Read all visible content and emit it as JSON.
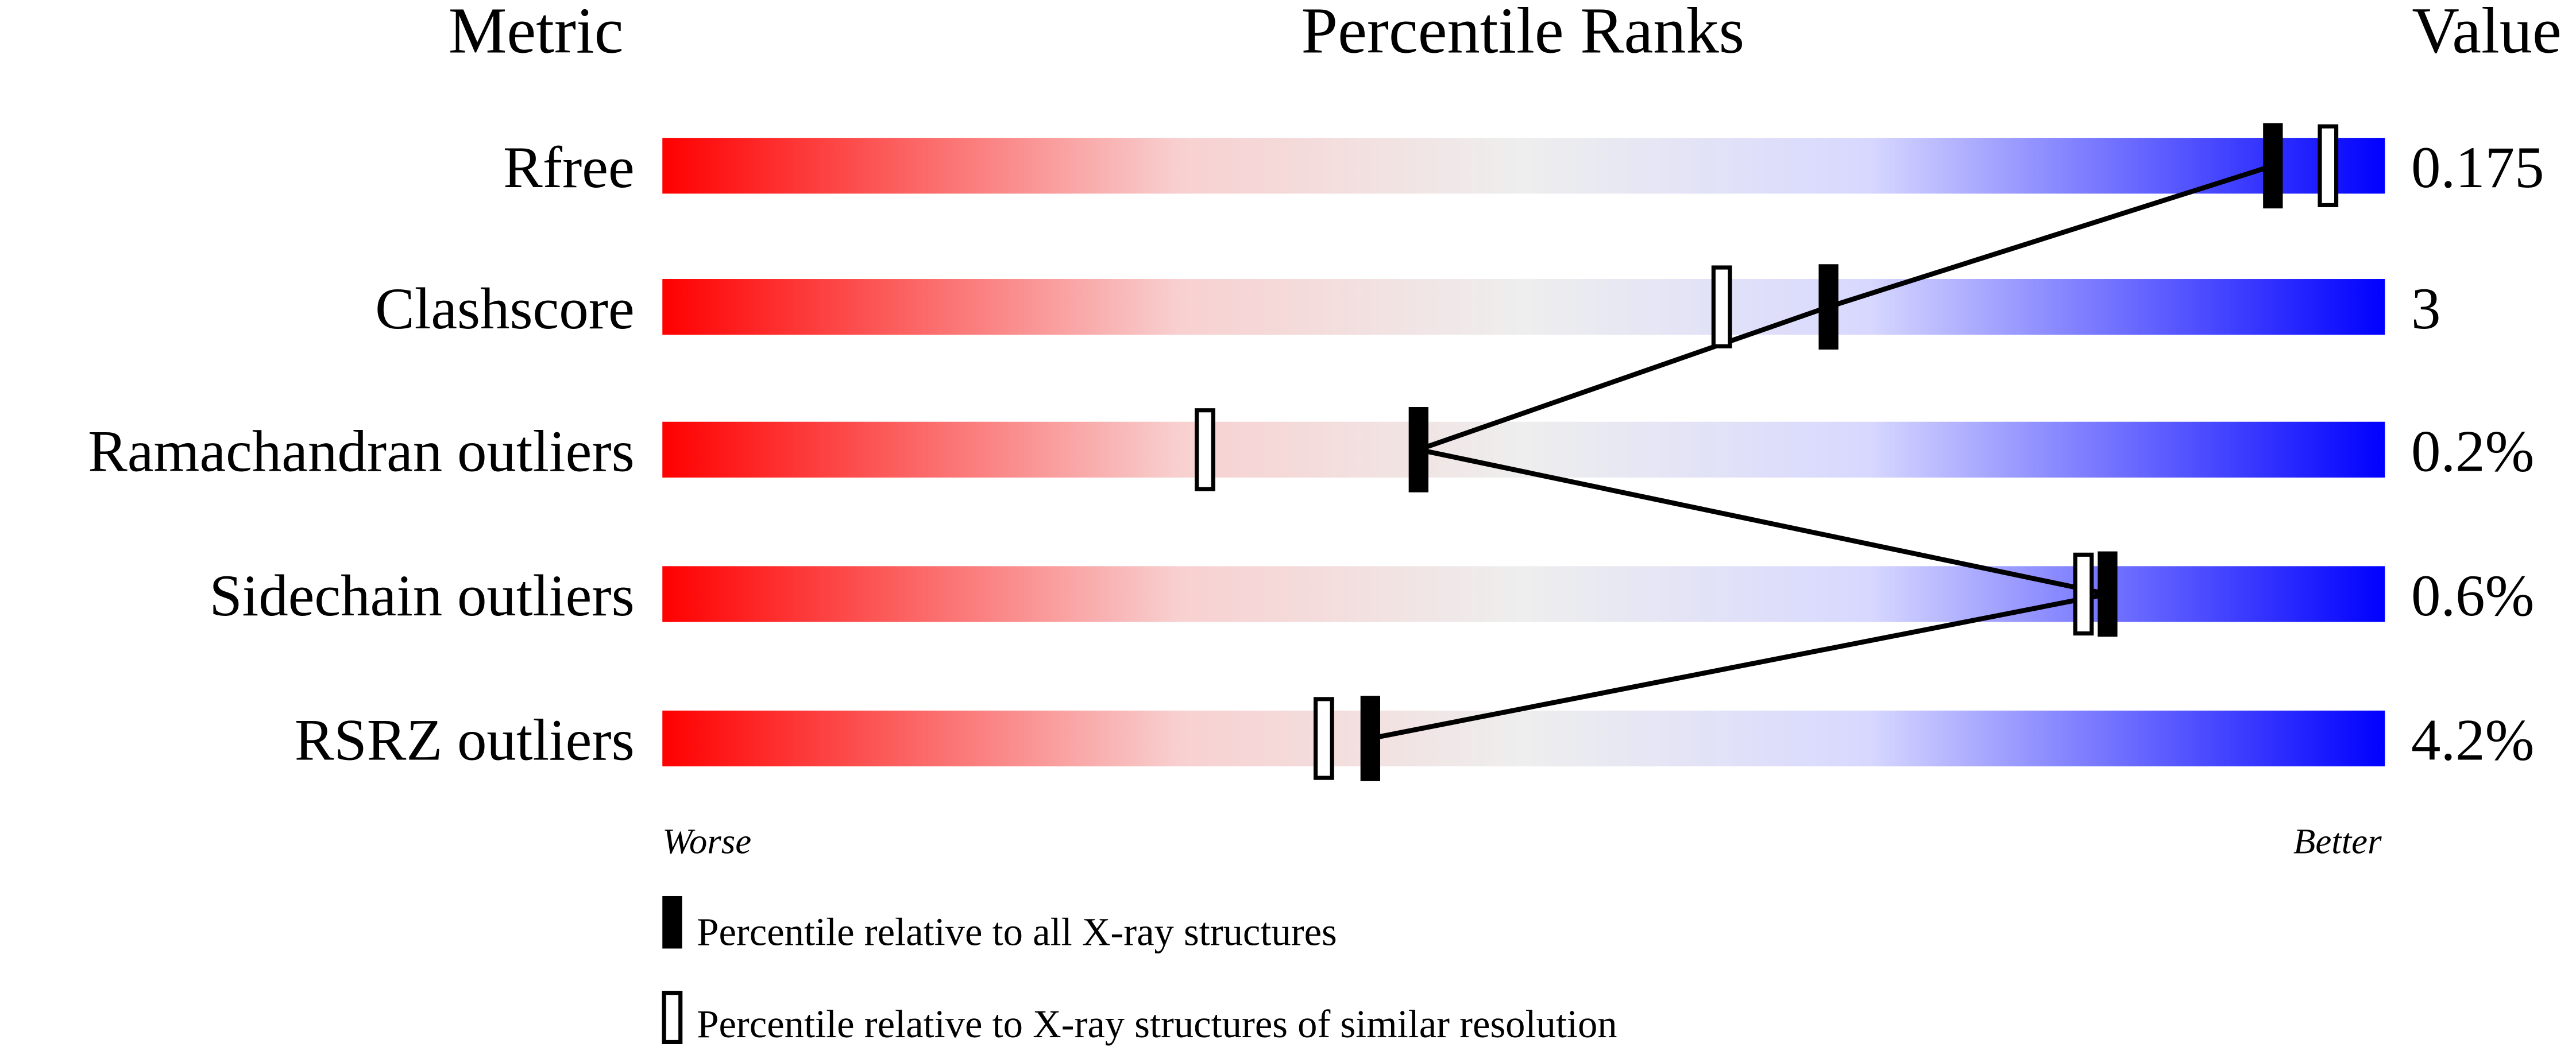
{
  "chart_data": {
    "type": "bar",
    "headers": {
      "metric": "Metric",
      "ranks": "Percentile Ranks",
      "value": "Value"
    },
    "metrics": [
      {
        "name": "Rfree",
        "value": "0.175",
        "percentile_all": 93.5,
        "percentile_similar": 96.7
      },
      {
        "name": "Clashscore",
        "value": "3",
        "percentile_all": 67.7,
        "percentile_similar": 61.5
      },
      {
        "name": "Ramachandran outliers",
        "value": "0.2%",
        "percentile_all": 43.9,
        "percentile_similar": 31.5
      },
      {
        "name": "Sidechain outliers",
        "value": "0.6%",
        "percentile_all": 83.9,
        "percentile_similar": 82.5
      },
      {
        "name": "RSRZ outliers",
        "value": "4.2%",
        "percentile_all": 41.1,
        "percentile_similar": 38.4
      }
    ],
    "xlim": [
      0,
      100
    ],
    "axis_left_label": "Worse",
    "axis_right_label": "Better",
    "legend": {
      "filled": "Percentile relative to all X-ray structures",
      "open": "Percentile relative to X-ray structures of similar resolution"
    },
    "gradient_colors": [
      "#ff0000",
      "#f8d0d0",
      "#eeeeee",
      "#d8d8ff",
      "#0000ff"
    ]
  }
}
